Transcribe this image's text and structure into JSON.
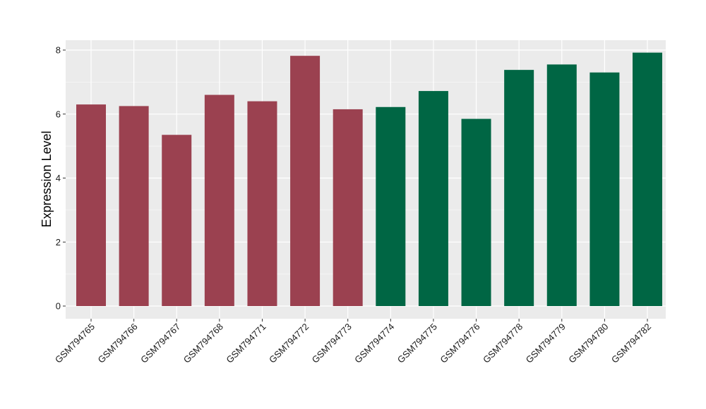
{
  "chart_data": {
    "type": "bar",
    "title": "",
    "xlabel": "",
    "ylabel": "Expression Level",
    "ylim": [
      0,
      8.5
    ],
    "yticks": [
      0,
      2,
      4,
      6,
      8
    ],
    "grid": true,
    "legend": "none",
    "colors": {
      "group1": "#9b4150",
      "group2": "#006644",
      "panel": "#ebebeb",
      "grid": "#ffffff"
    },
    "categories": [
      "GSM794765",
      "GSM794766",
      "GSM794767",
      "GSM794768",
      "GSM794771",
      "GSM794772",
      "GSM794773",
      "GSM794774",
      "GSM794775",
      "GSM794776",
      "GSM794778",
      "GSM794779",
      "GSM794780",
      "GSM794782"
    ],
    "values": [
      6.3,
      6.25,
      5.35,
      6.6,
      6.4,
      7.82,
      6.15,
      6.22,
      6.72,
      5.85,
      7.38,
      7.55,
      7.3,
      7.92
    ],
    "groups": [
      1,
      1,
      1,
      1,
      1,
      1,
      1,
      2,
      2,
      2,
      2,
      2,
      2,
      2
    ]
  }
}
